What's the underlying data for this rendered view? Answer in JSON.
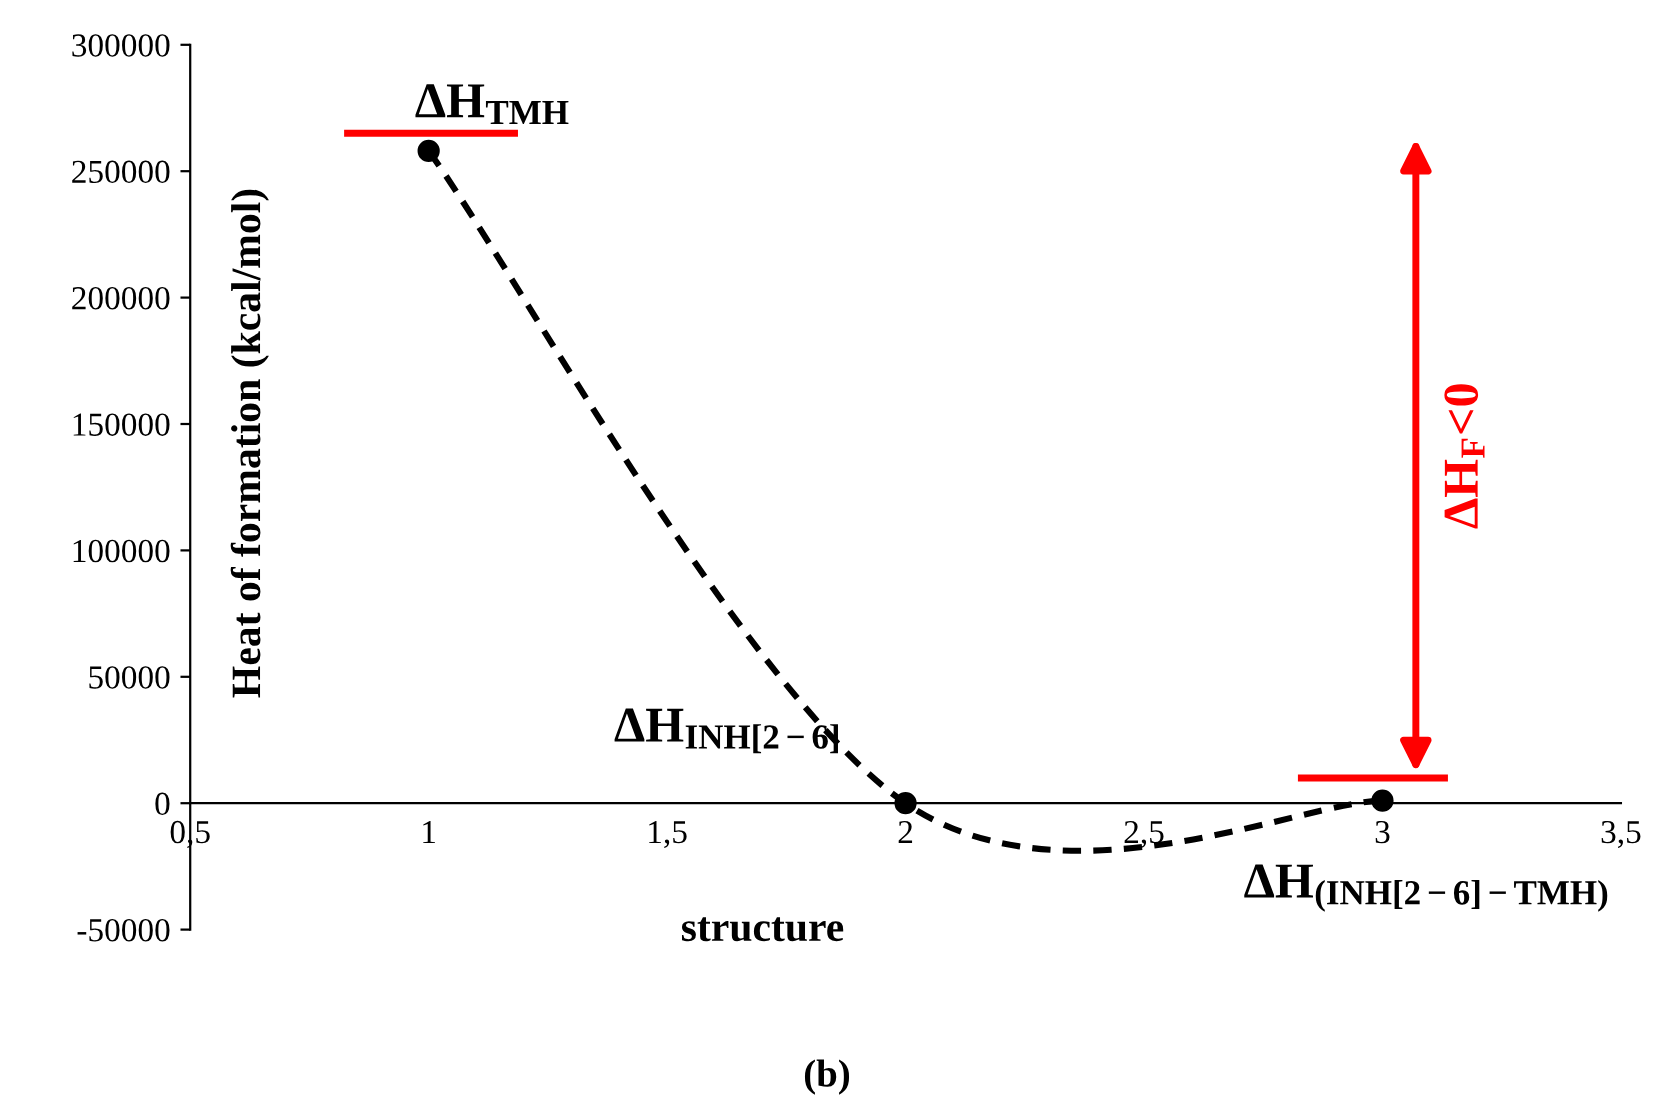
{
  "chart_data": {
    "type": "line",
    "xlabel": "structure",
    "ylabel": "Heat of formation (kcal/mol)",
    "xlim": [
      0.5,
      3.5
    ],
    "ylim": [
      -50000,
      300000
    ],
    "xticks": [
      {
        "value": 0.5,
        "label": "0,5"
      },
      1,
      {
        "value": 1.5,
        "label": "1,5"
      },
      2,
      {
        "value": 2.5,
        "label": "2,5"
      },
      3,
      {
        "value": 3.5,
        "label": "3,5"
      }
    ],
    "yticks": [
      -50000,
      0,
      50000,
      100000,
      150000,
      200000,
      250000,
      300000
    ],
    "grid": false,
    "legend": false,
    "series": [
      {
        "x": [
          1,
          2,
          3
        ],
        "values": [
          258000,
          0,
          1000
        ],
        "color": "#000000",
        "marker": "circle",
        "line_style": "dashed"
      },
      {
        "x": [
          0.83,
          1.18
        ],
        "values": [
          265000,
          265000
        ],
        "color": "#ff0000",
        "marker": "none",
        "line_style": "solid"
      },
      {
        "x": [
          2.83,
          3.13
        ],
        "values": [
          10000,
          10000
        ],
        "color": "#ff0000",
        "marker": "none",
        "line_style": "solid"
      }
    ],
    "annotations": [
      {
        "text": "ΔH$_{TMH}$",
        "x": 1,
        "y": 258000
      },
      {
        "text": "ΔH$_{INH[2−6]}$",
        "x": 2,
        "y": 0
      },
      {
        "text": "ΔH$_{(INH[2−6]−TMH)}$",
        "x": 3,
        "y": 1000
      },
      "ΔH$_{F}$<0",
      "(b)"
    ]
  }
}
